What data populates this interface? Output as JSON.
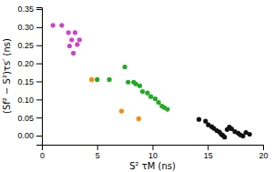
{
  "chart_data": {
    "type": "scatter",
    "xlabel": "S² τM (ns)",
    "ylabel": "(Sf² − S²)τs′ (ns)",
    "xlim": [
      0,
      20
    ],
    "ylim": [
      -0.025,
      0.355
    ],
    "xticks": [
      0,
      5,
      10,
      15,
      20
    ],
    "yticks": [
      {
        "value": 0.0,
        "label": "0.00"
      },
      0.05,
      {
        "value": 0.1,
        "label": "0.10"
      },
      0.15,
      {
        "value": 0.2,
        "label": "0.20"
      },
      0.25,
      {
        "value": 0.3,
        "label": "0.30"
      },
      0.35
    ],
    "series": [
      {
        "color": "#CC44CC",
        "x": [
          1.0,
          1.8,
          2.4,
          3.0,
          2.7,
          3.4,
          2.5,
          3.2,
          2.85
        ],
        "values": [
          0.305,
          0.305,
          0.285,
          0.285,
          0.265,
          0.265,
          0.248,
          0.252,
          0.228
        ]
      },
      {
        "color": "#22AA22",
        "x": [
          5.0,
          6.1,
          7.5,
          7.8,
          8.3,
          8.5,
          8.85,
          9.1,
          9.55,
          9.85,
          10.25,
          10.55,
          10.85,
          11.05,
          11.35
        ],
        "values": [
          0.155,
          0.155,
          0.19,
          0.148,
          0.148,
          0.143,
          0.138,
          0.122,
          0.118,
          0.108,
          0.102,
          0.092,
          0.082,
          0.078,
          0.073
        ]
      },
      {
        "color": "#FF8800",
        "x": [
          4.5,
          7.2,
          8.75
        ],
        "values": [
          0.155,
          0.068,
          0.047
        ]
      },
      {
        "color": "#111111",
        "x": [
          14.2,
          14.8,
          15.05,
          15.35,
          15.55,
          15.82,
          16.05,
          16.22,
          16.35,
          16.52,
          16.75,
          16.95,
          17.15,
          17.45,
          17.75,
          17.95,
          18.18,
          18.45,
          18.78
        ],
        "values": [
          0.045,
          0.04,
          0.03,
          0.025,
          0.02,
          0.014,
          0.01,
          0.004,
          0.001,
          -0.004,
          0.017,
          0.024,
          0.019,
          0.011,
          0.007,
          0.002,
          -0.001,
          0.009,
          0.004
        ]
      }
    ]
  }
}
